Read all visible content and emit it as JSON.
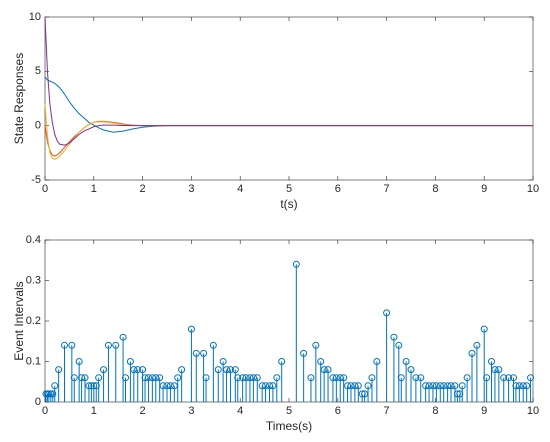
{
  "chart_data": [
    {
      "type": "line",
      "xlabel": "t(s)",
      "ylabel": "State Responses",
      "x": [
        0,
        0.05,
        0.1,
        0.15,
        0.2,
        0.25,
        0.3,
        0.4,
        0.5,
        0.6,
        0.7,
        0.8,
        0.9,
        1,
        1.1,
        1.2,
        1.4,
        1.6,
        1.8,
        2,
        2.2,
        2.5,
        3,
        4,
        5,
        6,
        7,
        8,
        9,
        10
      ],
      "series": [
        {
          "color": "#0072BD",
          "values": [
            4.5,
            4.2,
            4.1,
            4.0,
            3.9,
            3.7,
            3.5,
            2.9,
            2.2,
            1.6,
            1.1,
            0.7,
            0.3,
            0.05,
            -0.2,
            -0.4,
            -0.6,
            -0.5,
            -0.3,
            -0.15,
            -0.05,
            0,
            0,
            0,
            0,
            0,
            0,
            0,
            0,
            0
          ]
        },
        {
          "color": "#D95319",
          "values": [
            0,
            -1.5,
            -2.3,
            -2.7,
            -2.8,
            -2.7,
            -2.5,
            -2.0,
            -1.5,
            -1.0,
            -0.6,
            -0.2,
            0.1,
            0.3,
            0.4,
            0.4,
            0.3,
            0.15,
            0.05,
            0,
            0,
            0,
            0,
            0,
            0,
            0,
            0,
            0,
            0,
            0
          ]
        },
        {
          "color": "#EDB120",
          "values": [
            2,
            -1,
            -2.5,
            -3.0,
            -3.1,
            -3.0,
            -2.8,
            -2.3,
            -1.7,
            -1.1,
            -0.6,
            -0.2,
            0.1,
            0.3,
            0.35,
            0.35,
            0.25,
            0.1,
            0.03,
            0,
            0,
            0,
            0,
            0,
            0,
            0,
            0,
            0,
            0,
            0
          ]
        },
        {
          "color": "#7E2F8E",
          "values": [
            10,
            5,
            2,
            0.3,
            -0.8,
            -1.4,
            -1.7,
            -1.8,
            -1.6,
            -1.2,
            -0.8,
            -0.5,
            -0.3,
            -0.1,
            0,
            0.05,
            0.05,
            0.02,
            0,
            0,
            0,
            0,
            0,
            0,
            0,
            0,
            0,
            0,
            0,
            0
          ]
        }
      ],
      "xlim": [
        0,
        10
      ],
      "xticks": [
        0,
        1,
        2,
        3,
        4,
        5,
        6,
        7,
        8,
        9,
        10
      ],
      "ylim": [
        -5,
        10
      ],
      "yticks": [
        -5,
        0,
        5,
        10
      ]
    },
    {
      "type": "stem",
      "xlabel": "Times(s)",
      "ylabel": "Event Intervals",
      "color": "#0072BD",
      "x": [
        0.02,
        0.05,
        0.08,
        0.12,
        0.16,
        0.2,
        0.28,
        0.4,
        0.55,
        0.6,
        0.7,
        0.75,
        0.82,
        0.9,
        0.95,
        1.0,
        1.05,
        1.1,
        1.2,
        1.3,
        1.45,
        1.6,
        1.65,
        1.75,
        1.82,
        1.9,
        2.0,
        2.05,
        2.12,
        2.2,
        2.27,
        2.35,
        2.42,
        2.5,
        2.57,
        2.65,
        2.72,
        2.8,
        3.0,
        3.1,
        3.25,
        3.3,
        3.45,
        3.55,
        3.65,
        3.72,
        3.8,
        3.9,
        3.95,
        4.05,
        4.12,
        4.2,
        4.27,
        4.35,
        4.45,
        4.52,
        4.6,
        4.67,
        4.75,
        4.85,
        5.15,
        5.3,
        5.45,
        5.55,
        5.65,
        5.72,
        5.8,
        5.9,
        5.97,
        6.05,
        6.12,
        6.2,
        6.27,
        6.35,
        6.42,
        6.5,
        6.55,
        6.62,
        6.7,
        6.8,
        7.0,
        7.15,
        7.25,
        7.3,
        7.4,
        7.5,
        7.6,
        7.7,
        7.8,
        7.87,
        7.95,
        8.02,
        8.1,
        8.17,
        8.25,
        8.32,
        8.4,
        8.45,
        8.5,
        8.55,
        8.65,
        8.75,
        8.85,
        9.0,
        9.05,
        9.15,
        9.22,
        9.3,
        9.4,
        9.5,
        9.6,
        9.65,
        9.72,
        9.8,
        9.87,
        9.95
      ],
      "values": [
        0.02,
        0.02,
        0.02,
        0.02,
        0.02,
        0.04,
        0.08,
        0.14,
        0.14,
        0.06,
        0.1,
        0.06,
        0.06,
        0.04,
        0.04,
        0.04,
        0.04,
        0.06,
        0.08,
        0.14,
        0.14,
        0.16,
        0.06,
        0.1,
        0.08,
        0.08,
        0.08,
        0.06,
        0.06,
        0.06,
        0.06,
        0.06,
        0.04,
        0.04,
        0.04,
        0.04,
        0.06,
        0.08,
        0.18,
        0.12,
        0.12,
        0.06,
        0.14,
        0.08,
        0.1,
        0.08,
        0.08,
        0.08,
        0.06,
        0.06,
        0.06,
        0.06,
        0.06,
        0.06,
        0.04,
        0.04,
        0.04,
        0.04,
        0.06,
        0.1,
        0.34,
        0.12,
        0.06,
        0.14,
        0.1,
        0.08,
        0.08,
        0.06,
        0.06,
        0.06,
        0.06,
        0.04,
        0.04,
        0.04,
        0.04,
        0.02,
        0.02,
        0.04,
        0.06,
        0.1,
        0.22,
        0.16,
        0.14,
        0.06,
        0.1,
        0.08,
        0.06,
        0.06,
        0.04,
        0.04,
        0.04,
        0.04,
        0.04,
        0.04,
        0.04,
        0.04,
        0.04,
        0.02,
        0.02,
        0.04,
        0.06,
        0.12,
        0.14,
        0.18,
        0.06,
        0.1,
        0.08,
        0.08,
        0.06,
        0.06,
        0.06,
        0.04,
        0.04,
        0.04,
        0.04,
        0.06
      ],
      "xlim": [
        0,
        10
      ],
      "xticks": [
        0,
        1,
        2,
        3,
        4,
        5,
        6,
        7,
        8,
        9,
        10
      ],
      "ylim": [
        0,
        0.4
      ],
      "yticks": [
        0,
        0.1,
        0.2,
        0.3,
        0.4
      ]
    }
  ]
}
